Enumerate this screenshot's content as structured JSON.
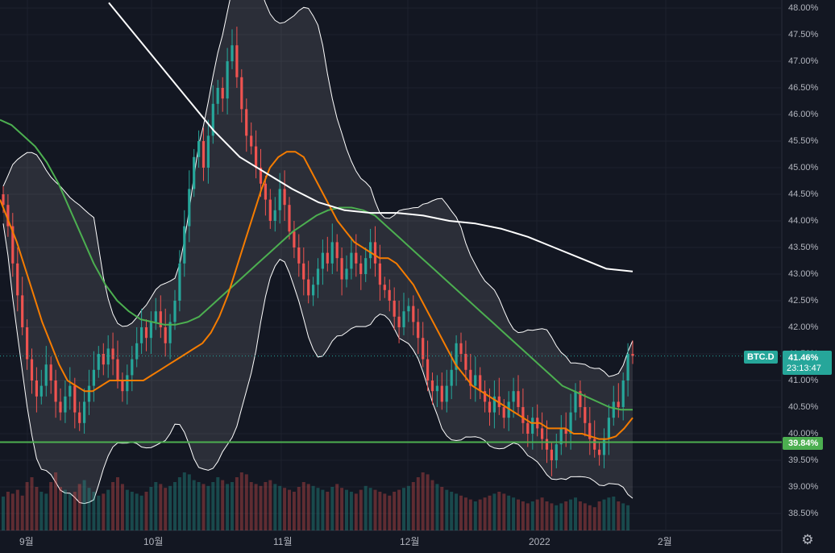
{
  "chart_data": {
    "type": "candlestick",
    "symbol": "BTC.D",
    "countdown": "23:13:47",
    "current_value_label": "41.46%",
    "support_line_label": "39.84%",
    "y_tick_labels": [
      "48.00%",
      "47.50%",
      "47.00%",
      "46.50%",
      "46.00%",
      "45.50%",
      "45.00%",
      "44.50%",
      "44.00%",
      "43.50%",
      "43.00%",
      "42.50%",
      "42.00%",
      "41.50%",
      "41.00%",
      "40.50%",
      "40.00%",
      "39.50%",
      "39.00%",
      "38.50%"
    ],
    "x_tick_labels": [
      "9월",
      "10월",
      "11월",
      "12월",
      "2022",
      "2월"
    ],
    "ylim": [
      38.2,
      48.15
    ],
    "support_level": 39.84,
    "last_close": 41.46,
    "candle_closes": [
      44.3,
      43.9,
      43.2,
      42.6,
      42.0,
      41.4,
      41.0,
      40.7,
      40.9,
      41.3,
      41.0,
      40.6,
      40.4,
      40.7,
      40.9,
      40.4,
      40.2,
      40.6,
      40.9,
      41.2,
      41.5,
      41.3,
      41.6,
      41.4,
      41.0,
      40.8,
      41.1,
      41.4,
      41.7,
      42.0,
      41.8,
      42.1,
      42.3,
      42.0,
      41.7,
      42.1,
      42.5,
      43.2,
      43.9,
      44.6,
      45.2,
      45.5,
      45.0,
      45.6,
      46.2,
      46.5,
      46.3,
      47.0,
      47.3,
      46.7,
      46.1,
      45.6,
      45.4,
      45.0,
      44.7,
      44.4,
      44.0,
      44.2,
      44.6,
      44.3,
      43.8,
      43.5,
      43.2,
      42.9,
      42.6,
      42.8,
      43.1,
      43.4,
      43.2,
      43.6,
      43.3,
      42.9,
      43.1,
      43.4,
      43.2,
      43.0,
      43.3,
      43.6,
      43.2,
      42.8,
      42.7,
      42.5,
      42.2,
      42.0,
      42.3,
      42.4,
      42.1,
      41.8,
      41.4,
      41.0,
      40.8,
      40.9,
      40.6,
      40.9,
      41.2,
      41.7,
      41.5,
      41.2,
      40.9,
      41.1,
      40.8,
      40.6,
      40.4,
      40.7,
      40.5,
      40.3,
      40.6,
      40.8,
      40.5,
      40.2,
      40.0,
      40.3,
      40.1,
      39.9,
      39.7,
      39.5,
      39.8,
      40.1,
      40.0,
      40.4,
      40.8,
      40.5,
      40.2,
      39.9,
      39.7,
      39.6,
      39.9,
      40.3,
      40.6,
      40.5,
      41.0,
      41.5,
      41.46
    ],
    "candle_volumes": [
      0.35,
      0.4,
      0.38,
      0.42,
      0.36,
      0.5,
      0.55,
      0.45,
      0.4,
      0.38,
      0.5,
      0.6,
      0.45,
      0.42,
      0.38,
      0.4,
      0.48,
      0.52,
      0.44,
      0.4,
      0.36,
      0.38,
      0.42,
      0.5,
      0.55,
      0.48,
      0.42,
      0.4,
      0.38,
      0.36,
      0.4,
      0.45,
      0.5,
      0.48,
      0.44,
      0.46,
      0.5,
      0.55,
      0.6,
      0.58,
      0.52,
      0.5,
      0.48,
      0.46,
      0.5,
      0.55,
      0.52,
      0.48,
      0.5,
      0.55,
      0.6,
      0.58,
      0.5,
      0.48,
      0.46,
      0.5,
      0.52,
      0.48,
      0.46,
      0.44,
      0.42,
      0.4,
      0.45,
      0.5,
      0.48,
      0.46,
      0.44,
      0.42,
      0.4,
      0.45,
      0.48,
      0.44,
      0.42,
      0.4,
      0.38,
      0.42,
      0.46,
      0.44,
      0.42,
      0.4,
      0.38,
      0.36,
      0.4,
      0.42,
      0.44,
      0.46,
      0.5,
      0.55,
      0.6,
      0.58,
      0.52,
      0.48,
      0.45,
      0.42,
      0.4,
      0.38,
      0.36,
      0.34,
      0.32,
      0.3,
      0.32,
      0.34,
      0.36,
      0.38,
      0.4,
      0.38,
      0.36,
      0.34,
      0.32,
      0.3,
      0.28,
      0.3,
      0.32,
      0.34,
      0.3,
      0.28,
      0.26,
      0.28,
      0.3,
      0.32,
      0.34,
      0.3,
      0.28,
      0.26,
      0.24,
      0.3,
      0.32,
      0.34,
      0.35,
      0.3,
      0.28,
      0.26
    ],
    "ma_orange": [
      44.4,
      44.0,
      43.6,
      43.1,
      42.6,
      42.1,
      41.7,
      41.3,
      41.0,
      40.9,
      40.8,
      40.8,
      40.9,
      41.0,
      41.0,
      41.0,
      41.0,
      41.0,
      41.1,
      41.2,
      41.3,
      41.4,
      41.5,
      41.6,
      41.7,
      41.9,
      42.2,
      42.6,
      43.1,
      43.6,
      44.1,
      44.6,
      45.0,
      45.2,
      45.3,
      45.3,
      45.2,
      44.9,
      44.6,
      44.3,
      44.0,
      43.8,
      43.6,
      43.5,
      43.4,
      43.3,
      43.3,
      43.2,
      43.0,
      42.8,
      42.5,
      42.2,
      41.9,
      41.6,
      41.3,
      41.1,
      40.9,
      40.8,
      40.7,
      40.6,
      40.5,
      40.4,
      40.3,
      40.2,
      40.2,
      40.1,
      40.1,
      40.1,
      40.0,
      40.0,
      39.95,
      39.9,
      39.9,
      39.95,
      40.1,
      40.3
    ],
    "ma_green": [
      45.9,
      45.8,
      45.6,
      45.4,
      45.1,
      44.7,
      44.2,
      43.7,
      43.2,
      42.8,
      42.5,
      42.3,
      42.15,
      42.1,
      42.05,
      42.05,
      42.1,
      42.2,
      42.4,
      42.6,
      42.8,
      43.0,
      43.2,
      43.4,
      43.6,
      43.8,
      43.95,
      44.1,
      44.2,
      44.25,
      44.25,
      44.2,
      44.1,
      43.9,
      43.7,
      43.5,
      43.3,
      43.1,
      42.9,
      42.7,
      42.5,
      42.3,
      42.1,
      41.9,
      41.7,
      41.5,
      41.3,
      41.1,
      40.9,
      40.8,
      40.7,
      40.6,
      40.5,
      40.45,
      40.45
    ],
    "ma_white": [
      48.1,
      47.5,
      46.9,
      46.3,
      45.7,
      45.2,
      44.9,
      44.6,
      44.35,
      44.2,
      44.15,
      44.15,
      44.1,
      44.0,
      43.95,
      43.85,
      43.7,
      43.5,
      43.3,
      43.1,
      43.05
    ]
  }
}
